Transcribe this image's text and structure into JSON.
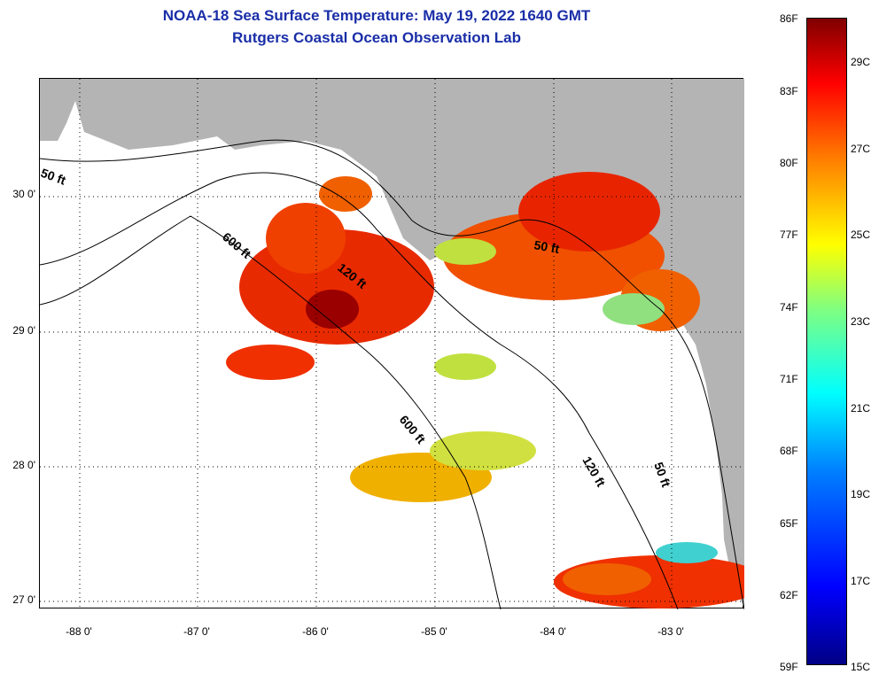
{
  "title": {
    "line1": "NOAA-18 Sea Surface Temperature:  May 19, 2022 1640 GMT",
    "line2": "Rutgers Coastal Ocean Observation Lab"
  },
  "map": {
    "x_ticks": [
      "-88 0'",
      "-87 0'",
      "-86 0'",
      "-85 0'",
      "-84 0'",
      "-83 0'"
    ],
    "y_ticks": [
      "30 0'",
      "29 0'",
      "28 0'",
      "27 0'"
    ],
    "lon_range": [
      -88.35,
      -82.45
    ],
    "lat_range": [
      26.95,
      30.9
    ],
    "contour_labels": [
      "50 ft",
      "600 ft",
      "120 ft",
      "50 ft",
      "600 ft",
      "120 ft",
      "50 ft"
    ],
    "land_color": "#b4b4b4",
    "no_data_color": "#ffffff"
  },
  "colorbar": {
    "fahrenheit": [
      "86F",
      "83F",
      "80F",
      "77F",
      "74F",
      "71F",
      "68F",
      "65F",
      "62F",
      "59F"
    ],
    "celsius": [
      "29C",
      "27C",
      "25C",
      "23C",
      "21C",
      "19C",
      "17C",
      "15C"
    ],
    "range_f": [
      59,
      86
    ]
  }
}
